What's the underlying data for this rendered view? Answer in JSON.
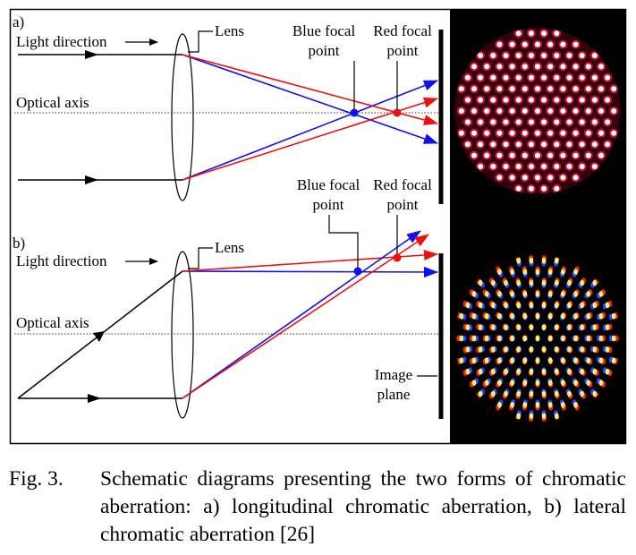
{
  "panel_a": {
    "tag": "a)",
    "light_direction": "Light direction",
    "lens": "Lens",
    "optical_axis": "Optical axis",
    "blue_focal_line1": "Blue focal",
    "blue_focal_line2": "point",
    "red_focal_line1": "Red focal",
    "red_focal_line2": "point"
  },
  "panel_b": {
    "tag": "b)",
    "light_direction": "Light direction",
    "lens": "Lens",
    "optical_axis": "Optical axis",
    "blue_focal_line1": "Blue focal",
    "blue_focal_line2": "point",
    "red_focal_line1": "Red focal",
    "red_focal_line2": "point",
    "image_plane_line1": "Image",
    "image_plane_line2": "plane"
  },
  "colors": {
    "blue_ray": "#1010ee",
    "red_ray": "#ee1010",
    "panel_bg": "#000000"
  },
  "caption": {
    "label": "Fig. 3.",
    "text": "Schematic diagrams presenting the two forms of chromatic aberration: a) longitudinal chromatic aberration, b) lateral chromatic aberration [26]"
  }
}
